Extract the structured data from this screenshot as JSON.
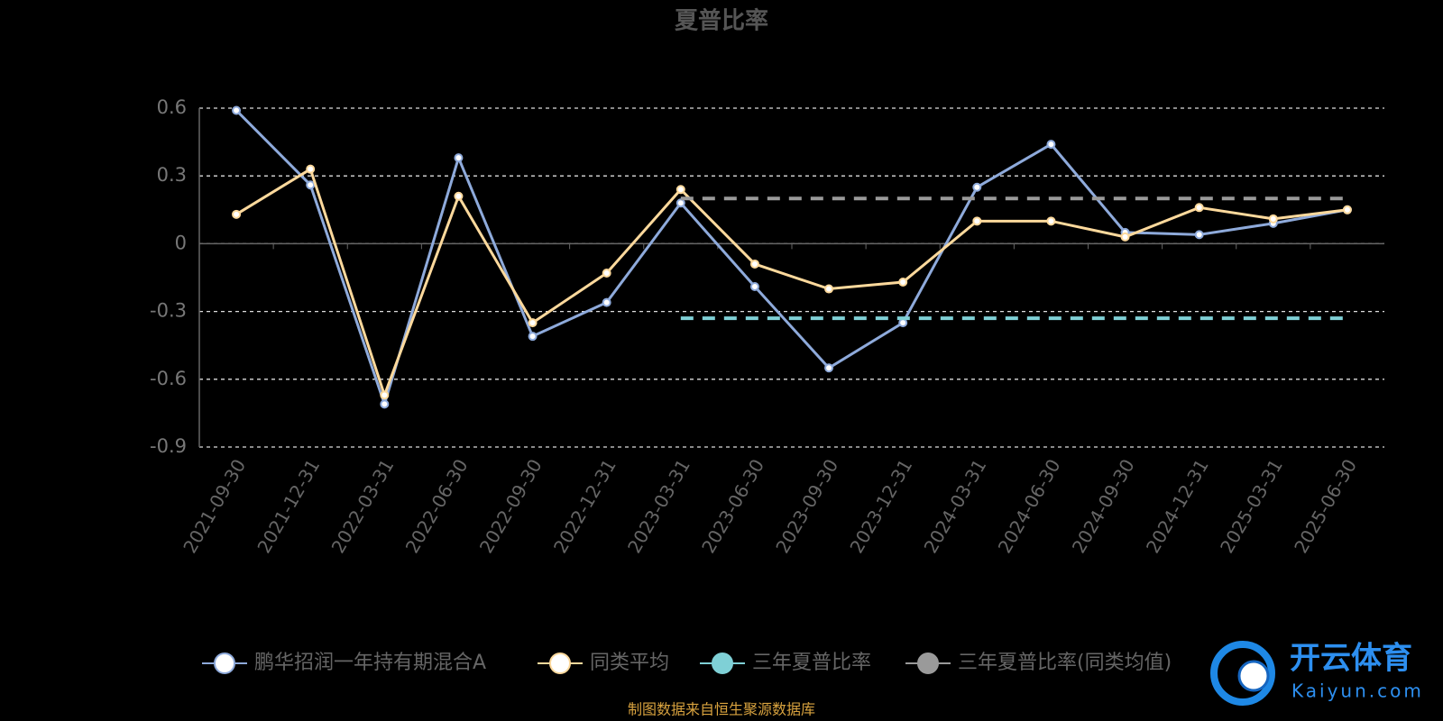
{
  "chart_data": {
    "type": "line",
    "title": "夏普比率",
    "categories": [
      "2021-09-30",
      "2021-12-31",
      "2022-03-31",
      "2022-06-30",
      "2022-09-30",
      "2022-12-31",
      "2023-03-31",
      "2023-06-30",
      "2023-09-30",
      "2023-12-31",
      "2024-03-31",
      "2024-06-30",
      "2024-09-30",
      "2024-12-31",
      "2025-03-31",
      "2025-06-30"
    ],
    "series": [
      {
        "name": "鹏华招润一年持有期混合A",
        "color": "#8eaadb",
        "values": [
          0.59,
          0.26,
          -0.71,
          0.38,
          -0.41,
          -0.26,
          0.18,
          -0.19,
          -0.55,
          -0.35,
          0.25,
          0.44,
          0.05,
          0.04,
          0.09,
          0.15
        ]
      },
      {
        "name": "同类平均",
        "color": "#fdd99c",
        "values": [
          0.13,
          0.33,
          -0.67,
          0.21,
          -0.35,
          -0.13,
          0.24,
          -0.09,
          -0.2,
          -0.17,
          0.1,
          0.1,
          0.03,
          0.16,
          0.11,
          0.15
        ]
      },
      {
        "name": "三年夏普比率",
        "color": "#7fd0d6",
        "dashed": true,
        "values": [
          null,
          null,
          null,
          null,
          null,
          null,
          -0.33,
          -0.33,
          -0.33,
          -0.33,
          -0.33,
          -0.33,
          -0.33,
          -0.33,
          -0.33,
          -0.33
        ]
      },
      {
        "name": "三年夏普比率(同类均值)",
        "color": "#9a9a9a",
        "dashed": true,
        "values": [
          null,
          null,
          null,
          null,
          null,
          null,
          0.2,
          0.2,
          0.2,
          0.2,
          0.2,
          0.2,
          0.2,
          0.2,
          0.2,
          0.2
        ]
      }
    ],
    "ylim": [
      -0.9,
      0.6
    ],
    "yticks": [
      -0.9,
      -0.6,
      -0.3,
      0,
      0.3,
      0.6
    ],
    "grid": true,
    "source": "制图数据来自恒生聚源数据库"
  },
  "watermark": {
    "name": "开云体育",
    "url": "Kaiyun.com"
  }
}
